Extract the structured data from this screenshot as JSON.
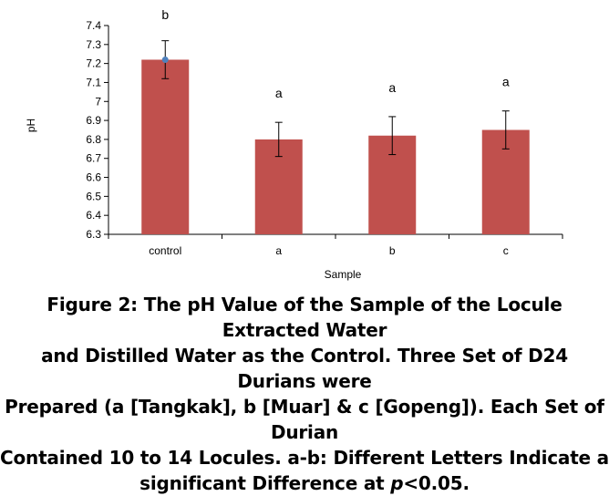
{
  "chart_data": {
    "type": "bar",
    "categories": [
      "control",
      "a",
      "b",
      "c"
    ],
    "values": [
      7.22,
      6.8,
      6.82,
      6.85
    ],
    "error": [
      0.1,
      0.09,
      0.1,
      0.1
    ],
    "significance_letters": [
      "b",
      "a",
      "a",
      "a"
    ],
    "xlabel": "Sample",
    "ylabel": "pH",
    "ylim": [
      6.3,
      7.4
    ],
    "yticks": [
      "6.3",
      "6.4",
      "6.5",
      "6.6",
      "6.7",
      "6.8",
      "6.9",
      "7",
      "7.1",
      "7.2",
      "7.3",
      "7.4"
    ],
    "grid": false,
    "colors": {
      "bar": "#c0504d",
      "marker": "#4f81bd",
      "axis": "#000000"
    }
  },
  "caption": {
    "line1": "Figure 2: The pH Value of the Sample of the Locule Extracted Water",
    "line2": "and Distilled Water as the Control. Three Set of D24 Durians were",
    "line3": "Prepared (a [Tangkak], b [Muar] & c [Gopeng]). Each Set of Durian",
    "line4": "Contained 10 to 14 Locules. a-b: Different Letters Indicate a",
    "line5_pre": "significant Difference at ",
    "line5_p": "p",
    "line5_post": "<0.05."
  }
}
